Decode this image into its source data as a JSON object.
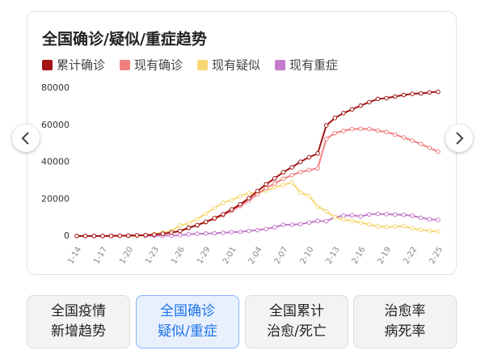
{
  "chart_data": {
    "type": "line",
    "title": "全国确诊/疑似/重症趋势",
    "categories": [
      "1-14",
      null,
      null,
      "1-17",
      null,
      null,
      "1-20",
      null,
      null,
      "1-23",
      null,
      null,
      "1-26",
      null,
      null,
      "1-29",
      null,
      null,
      "2-01",
      null,
      null,
      "2-04",
      null,
      null,
      "2-07",
      null,
      null,
      "2-10",
      null,
      null,
      "2-13",
      null,
      null,
      "2-16",
      null,
      null,
      "2-19",
      null,
      null,
      "2-22",
      null,
      null,
      "2-25"
    ],
    "series": [
      {
        "name": "累计确诊",
        "color": "#a31515",
        "values": [
          41,
          41,
          45,
          62,
          121,
          198,
          291,
          440,
          571,
          830,
          1287,
          1975,
          2744,
          4515,
          5974,
          7711,
          9692,
          11791,
          14380,
          17205,
          20438,
          24324,
          28018,
          31161,
          34546,
          37198,
          40171,
          42638,
          44653,
          59804,
          63851,
          66492,
          68500,
          70548,
          72436,
          74185,
          74576,
          75465,
          76288,
          76936,
          77150,
          77658,
          78064
        ]
      },
      {
        "name": "现有确诊",
        "color": "#f08080",
        "values": [
          40,
          40,
          44,
          60,
          118,
          190,
          280,
          400,
          509,
          770,
          1200,
          1880,
          2630,
          4350,
          5780,
          7460,
          9340,
          11300,
          13700,
          16300,
          19200,
          22700,
          26000,
          28400,
          31000,
          32900,
          34600,
          35700,
          36600,
          52500,
          55700,
          56900,
          57900,
          58000,
          57900,
          57000,
          56300,
          54900,
          53300,
          51600,
          49800,
          47700,
          45600
        ]
      },
      {
        "name": "现有疑似",
        "color": "#f7d774",
        "values": [
          null,
          null,
          null,
          null,
          null,
          null,
          54,
          120,
          393,
          1072,
          1965,
          2684,
          5794,
          6973,
          9239,
          12167,
          15238,
          17988,
          19544,
          21558,
          23214,
          23260,
          24702,
          26359,
          27657,
          28942,
          23589,
          21675,
          16067,
          13435,
          10109,
          8969,
          8228,
          7264,
          6242,
          5248,
          4922,
          5206,
          5365,
          4148,
          3434,
          2824,
          2491
        ]
      },
      {
        "name": "现有重症",
        "color": "#c57ccc",
        "values": [
          null,
          null,
          null,
          null,
          null,
          null,
          null,
          null,
          100,
          180,
          250,
          324,
          461,
          976,
          1239,
          1370,
          1527,
          1795,
          2110,
          2296,
          2788,
          3219,
          3859,
          4821,
          6101,
          6188,
          6484,
          7333,
          8204,
          8030,
          10204,
          11053,
          11272,
          10644,
          11741,
          11977,
          11864,
          11633,
          11477,
          10968,
          9915,
          9126,
          8752
        ]
      }
    ],
    "ylim": [
      0,
      80000
    ],
    "yticks": [
      0,
      20000,
      40000,
      60000,
      80000
    ],
    "grid": false
  },
  "tabs": [
    [
      "全国疫情",
      "新增趋势"
    ],
    [
      "全国确诊",
      "疑似/重症"
    ],
    [
      "全国累计",
      "治愈/死亡"
    ],
    [
      "治愈率",
      "病死率"
    ]
  ]
}
